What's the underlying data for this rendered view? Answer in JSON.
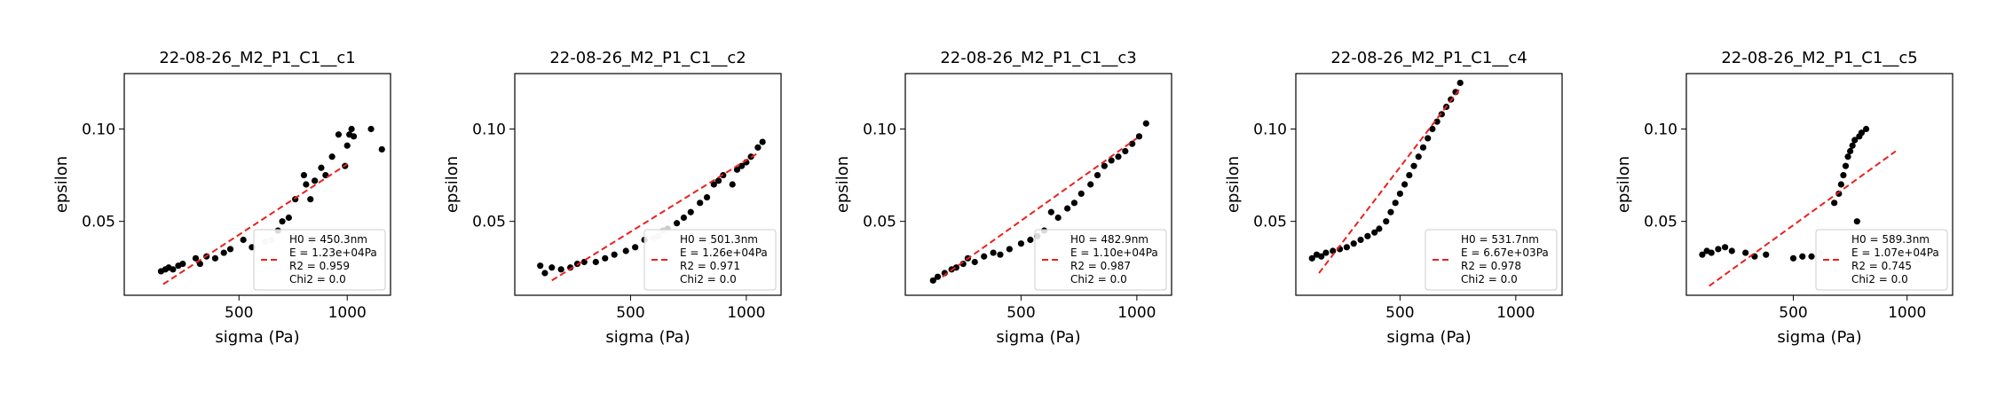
{
  "figure": {
    "xlabel": "sigma (Pa)",
    "ylabel": "epsilon"
  },
  "chart_data": [
    {
      "type": "scatter",
      "title": "22-08-26_M2_P1_C1__c1",
      "xlabel": "sigma (Pa)",
      "ylabel": "epsilon",
      "xlim": [
        -30,
        1200
      ],
      "ylim": [
        0.01,
        0.13
      ],
      "xticks": [
        500,
        1000
      ],
      "yticks": [
        0.05,
        0.1
      ],
      "xtick_labels": [
        "500",
        "1000"
      ],
      "ytick_labels": [
        "0.05",
        "0.10"
      ],
      "legend_position": "lower-right",
      "legend": [
        "H0 = 450.3nm",
        "E = 1.23e+04Pa",
        "R2 = 0.959",
        "Chi2 = 0.0"
      ],
      "fit": {
        "x": [
          150,
          1000
        ],
        "y": [
          0.016,
          0.081
        ],
        "color": "#e8211f"
      },
      "points": {
        "x": [
          140,
          160,
          175,
          195,
          220,
          240,
          300,
          320,
          350,
          390,
          430,
          460,
          520,
          560,
          620,
          650,
          680,
          700,
          730,
          760,
          800,
          810,
          830,
          850,
          880,
          900,
          930,
          960,
          990,
          1000,
          1010,
          1020,
          1030,
          1110,
          1160
        ],
        "y": [
          0.023,
          0.024,
          0.025,
          0.024,
          0.026,
          0.027,
          0.03,
          0.027,
          0.031,
          0.03,
          0.033,
          0.035,
          0.04,
          0.036,
          0.039,
          0.04,
          0.045,
          0.05,
          0.052,
          0.062,
          0.075,
          0.07,
          0.062,
          0.072,
          0.079,
          0.075,
          0.085,
          0.097,
          0.08,
          0.091,
          0.097,
          0.1,
          0.096,
          0.1,
          0.089
        ],
        "colors": [
          "#000",
          "#000",
          "#000",
          "#000",
          "#000",
          "#000",
          "#000",
          "#000",
          "#000",
          "#000",
          "#000",
          "#000",
          "#000",
          "#000",
          "#ccc",
          "#ccc",
          "#000",
          "#000",
          "#000",
          "#000",
          "#000",
          "#000",
          "#000",
          "#000",
          "#000",
          "#000",
          "#000",
          "#000",
          "#000",
          "#000",
          "#000",
          "#000",
          "#000",
          "#000",
          "#000"
        ]
      }
    },
    {
      "type": "scatter",
      "title": "22-08-26_M2_P1_C1__c2",
      "xlabel": "sigma (Pa)",
      "ylabel": "epsilon",
      "xlim": [
        0,
        1150
      ],
      "ylim": [
        0.01,
        0.13
      ],
      "xticks": [
        500,
        1000
      ],
      "yticks": [
        0.05,
        0.1
      ],
      "xtick_labels": [
        "500",
        "1000"
      ],
      "ytick_labels": [
        "0.05",
        "0.10"
      ],
      "legend_position": "lower-right",
      "legend": [
        "H0 = 501.3nm",
        "E = 1.26e+04Pa",
        "R2 = 0.971",
        "Chi2 = 0.0"
      ],
      "fit": {
        "x": [
          160,
          1050
        ],
        "y": [
          0.018,
          0.087
        ],
        "color": "#e8211f"
      },
      "points": {
        "x": [
          110,
          130,
          160,
          200,
          240,
          270,
          300,
          350,
          390,
          430,
          480,
          520,
          560,
          600,
          620,
          640,
          660,
          700,
          730,
          760,
          800,
          830,
          860,
          880,
          900,
          940,
          960,
          980,
          1000,
          1020,
          1050,
          1070
        ],
        "y": [
          0.026,
          0.022,
          0.025,
          0.024,
          0.025,
          0.027,
          0.028,
          0.028,
          0.03,
          0.032,
          0.034,
          0.036,
          0.04,
          0.041,
          0.042,
          0.045,
          0.046,
          0.049,
          0.052,
          0.055,
          0.06,
          0.063,
          0.07,
          0.072,
          0.075,
          0.07,
          0.078,
          0.08,
          0.082,
          0.085,
          0.09,
          0.093
        ],
        "colors": [
          "#000",
          "#000",
          "#000",
          "#000",
          "#000",
          "#000",
          "#000",
          "#000",
          "#000",
          "#000",
          "#000",
          "#000",
          "#000",
          "#ccc",
          "#ccc",
          "#ccc",
          "#ccc",
          "#000",
          "#000",
          "#000",
          "#000",
          "#000",
          "#000",
          "#000",
          "#000",
          "#000",
          "#000",
          "#000",
          "#000",
          "#000",
          "#000",
          "#000"
        ]
      }
    },
    {
      "type": "scatter",
      "title": "22-08-26_M2_P1_C1__c3",
      "xlabel": "sigma (Pa)",
      "ylabel": "epsilon",
      "xlim": [
        0,
        1150
      ],
      "ylim": [
        0.01,
        0.13
      ],
      "xticks": [
        500,
        1000
      ],
      "yticks": [
        0.05,
        0.1
      ],
      "xtick_labels": [
        "500",
        "1000"
      ],
      "ytick_labels": [
        "0.05",
        "0.10"
      ],
      "legend_position": "lower-right",
      "legend": [
        "H0 = 482.9nm",
        "E = 1.10e+04Pa",
        "R2 = 0.987",
        "Chi2 = 0.0"
      ],
      "fit": {
        "x": [
          160,
          1000
        ],
        "y": [
          0.02,
          0.095
        ],
        "color": "#e8211f"
      },
      "points": {
        "x": [
          120,
          140,
          170,
          200,
          220,
          250,
          270,
          300,
          340,
          380,
          410,
          450,
          500,
          540,
          570,
          600,
          630,
          660,
          700,
          730,
          760,
          800,
          830,
          860,
          890,
          920,
          950,
          980,
          1010,
          1040
        ],
        "y": [
          0.018,
          0.02,
          0.022,
          0.024,
          0.025,
          0.027,
          0.03,
          0.028,
          0.031,
          0.033,
          0.032,
          0.035,
          0.038,
          0.04,
          0.042,
          0.045,
          0.055,
          0.052,
          0.057,
          0.06,
          0.065,
          0.07,
          0.075,
          0.08,
          0.083,
          0.085,
          0.088,
          0.092,
          0.096,
          0.103
        ],
        "colors": [
          "#000",
          "#000",
          "#000",
          "#000",
          "#000",
          "#000",
          "#000",
          "#000",
          "#000",
          "#000",
          "#000",
          "#000",
          "#000",
          "#000",
          "#000",
          "#000",
          "#000",
          "#000",
          "#000",
          "#000",
          "#000",
          "#000",
          "#000",
          "#000",
          "#000",
          "#000",
          "#000",
          "#000",
          "#000",
          "#000"
        ]
      }
    },
    {
      "type": "scatter",
      "title": "22-08-26_M2_P1_C1__c4",
      "xlabel": "sigma (Pa)",
      "ylabel": "epsilon",
      "xlim": [
        50,
        1200
      ],
      "ylim": [
        0.01,
        0.13
      ],
      "xticks": [
        500,
        1000
      ],
      "yticks": [
        0.05,
        0.1
      ],
      "xtick_labels": [
        "500",
        "1000"
      ],
      "ytick_labels": [
        "0.05",
        "0.10"
      ],
      "legend_position": "lower-right",
      "legend": [
        "H0 = 531.7nm",
        "E = 6.67e+03Pa",
        "R2 = 0.978",
        "Chi2 = 0.0"
      ],
      "fit": {
        "x": [
          150,
          760
        ],
        "y": [
          0.022,
          0.122
        ],
        "color": "#e8211f"
      },
      "points": {
        "x": [
          120,
          140,
          160,
          180,
          210,
          240,
          270,
          300,
          330,
          360,
          390,
          410,
          440,
          460,
          480,
          500,
          520,
          540,
          560,
          580,
          600,
          620,
          640,
          660,
          680,
          700,
          720,
          740,
          760
        ],
        "y": [
          0.03,
          0.032,
          0.031,
          0.033,
          0.034,
          0.035,
          0.036,
          0.038,
          0.04,
          0.042,
          0.044,
          0.046,
          0.05,
          0.055,
          0.06,
          0.065,
          0.07,
          0.075,
          0.08,
          0.085,
          0.09,
          0.095,
          0.1,
          0.104,
          0.108,
          0.112,
          0.116,
          0.12,
          0.125
        ],
        "colors": [
          "#000",
          "#000",
          "#000",
          "#000",
          "#000",
          "#000",
          "#000",
          "#000",
          "#000",
          "#000",
          "#000",
          "#000",
          "#000",
          "#000",
          "#000",
          "#000",
          "#000",
          "#000",
          "#000",
          "#000",
          "#000",
          "#000",
          "#000",
          "#000",
          "#000",
          "#000",
          "#000",
          "#000",
          "#000"
        ]
      }
    },
    {
      "type": "scatter",
      "title": "22-08-26_M2_P1_C1__c5",
      "xlabel": "sigma (Pa)",
      "ylabel": "epsilon",
      "xlim": [
        30,
        1200
      ],
      "ylim": [
        0.01,
        0.13
      ],
      "xticks": [
        500,
        1000
      ],
      "yticks": [
        0.05,
        0.1
      ],
      "xtick_labels": [
        "500",
        "1000"
      ],
      "ytick_labels": [
        "0.05",
        "0.10"
      ],
      "legend_position": "lower-right",
      "legend": [
        "H0 = 589.3nm",
        "E = 1.07e+04Pa",
        "R2 = 0.745",
        "Chi2 = 0.0"
      ],
      "fit": {
        "x": [
          130,
          950
        ],
        "y": [
          0.015,
          0.088
        ],
        "color": "#e8211f"
      },
      "points": {
        "x": [
          100,
          120,
          140,
          170,
          200,
          230,
          290,
          330,
          380,
          500,
          540,
          580,
          620,
          680,
          700,
          710,
          720,
          730,
          740,
          750,
          760,
          770,
          780,
          790,
          800,
          820,
          850,
          900,
          1000,
          1050,
          1100
        ],
        "y": [
          0.032,
          0.034,
          0.033,
          0.035,
          0.036,
          0.034,
          0.033,
          0.031,
          0.032,
          0.03,
          0.031,
          0.031,
          0.033,
          0.06,
          0.065,
          0.07,
          0.075,
          0.08,
          0.085,
          0.088,
          0.091,
          0.094,
          0.05,
          0.096,
          0.098,
          0.1,
          0.03,
          0.025,
          0.027,
          0.029,
          0.031
        ],
        "colors": [
          "#000",
          "#000",
          "#000",
          "#000",
          "#000",
          "#000",
          "#000",
          "#000",
          "#000",
          "#000",
          "#000",
          "#000",
          "#ccc",
          "#000",
          "#000",
          "#000",
          "#000",
          "#000",
          "#000",
          "#000",
          "#000",
          "#000",
          "#000",
          "#000",
          "#000",
          "#000",
          "#ccc",
          "#ccc",
          "#ccc",
          "#ccc",
          "#ccc"
        ]
      }
    }
  ]
}
